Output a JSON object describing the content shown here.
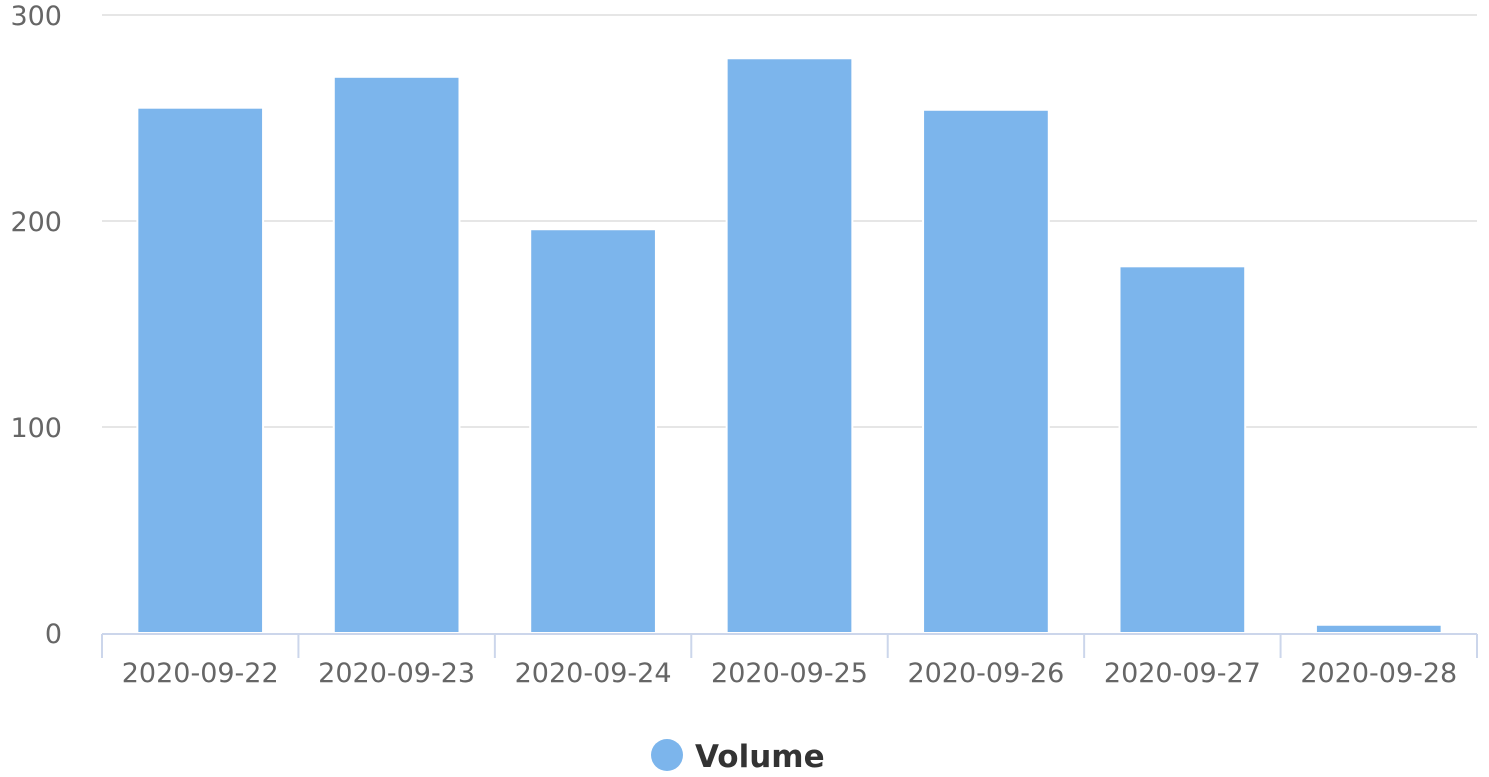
{
  "chart_data": {
    "type": "bar",
    "categories": [
      "2020-09-22",
      "2020-09-23",
      "2020-09-24",
      "2020-09-25",
      "2020-09-26",
      "2020-09-27",
      "2020-09-28"
    ],
    "series": [
      {
        "name": "Volume",
        "values": [
          255,
          270,
          196,
          279,
          254,
          178,
          4
        ],
        "color": "#7cb5ec"
      }
    ],
    "y_ticks": [
      "0",
      "100",
      "200",
      "300"
    ],
    "ylim": [
      0,
      300
    ],
    "grid": true,
    "legend": {
      "position": "bottom-center",
      "marker": "circle"
    },
    "title": "",
    "xlabel": "",
    "ylabel": ""
  }
}
